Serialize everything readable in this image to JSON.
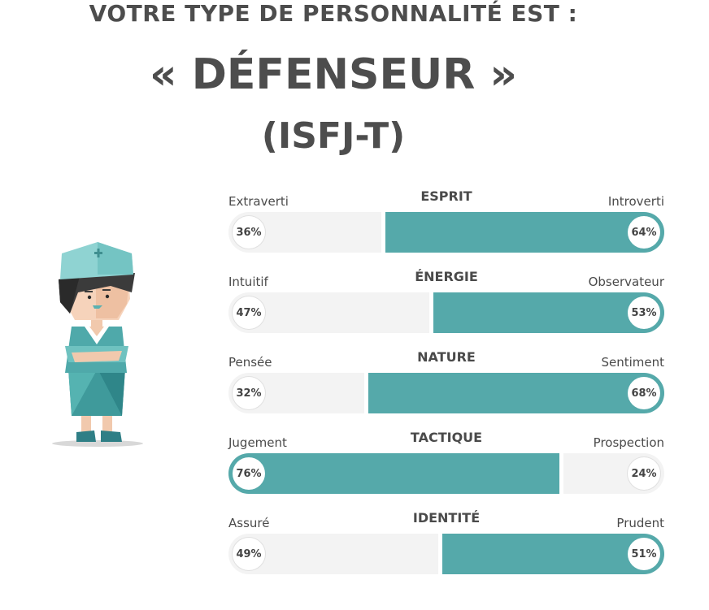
{
  "header": {
    "intro": "VOTRE TYPE DE PERSONNALITÉ EST :",
    "type_name": "« DÉFENSEUR »",
    "type_code": "(ISFJ-T)"
  },
  "colors": {
    "accent": "#55a9aa",
    "track": "#f3f3f3",
    "text": "#4a4a4a"
  },
  "character": {
    "icon": "nurse-character-illustration"
  },
  "traits": [
    {
      "title": "ESPRIT",
      "left_label": "Extraverti",
      "right_label": "Introverti",
      "left_pct": "36%",
      "right_pct": "64%",
      "dominant": "right",
      "dominant_value": 0.64
    },
    {
      "title": "ÉNERGIE",
      "left_label": "Intuitif",
      "right_label": "Observateur",
      "left_pct": "47%",
      "right_pct": "53%",
      "dominant": "right",
      "dominant_value": 0.53
    },
    {
      "title": "NATURE",
      "left_label": "Pensée",
      "right_label": "Sentiment",
      "left_pct": "32%",
      "right_pct": "68%",
      "dominant": "right",
      "dominant_value": 0.68
    },
    {
      "title": "TACTIQUE",
      "left_label": "Jugement",
      "right_label": "Prospection",
      "left_pct": "76%",
      "right_pct": "24%",
      "dominant": "left",
      "dominant_value": 0.76
    },
    {
      "title": "IDENTITÉ",
      "left_label": "Assuré",
      "right_label": "Prudent",
      "left_pct": "49%",
      "right_pct": "51%",
      "dominant": "right",
      "dominant_value": 0.51
    }
  ]
}
